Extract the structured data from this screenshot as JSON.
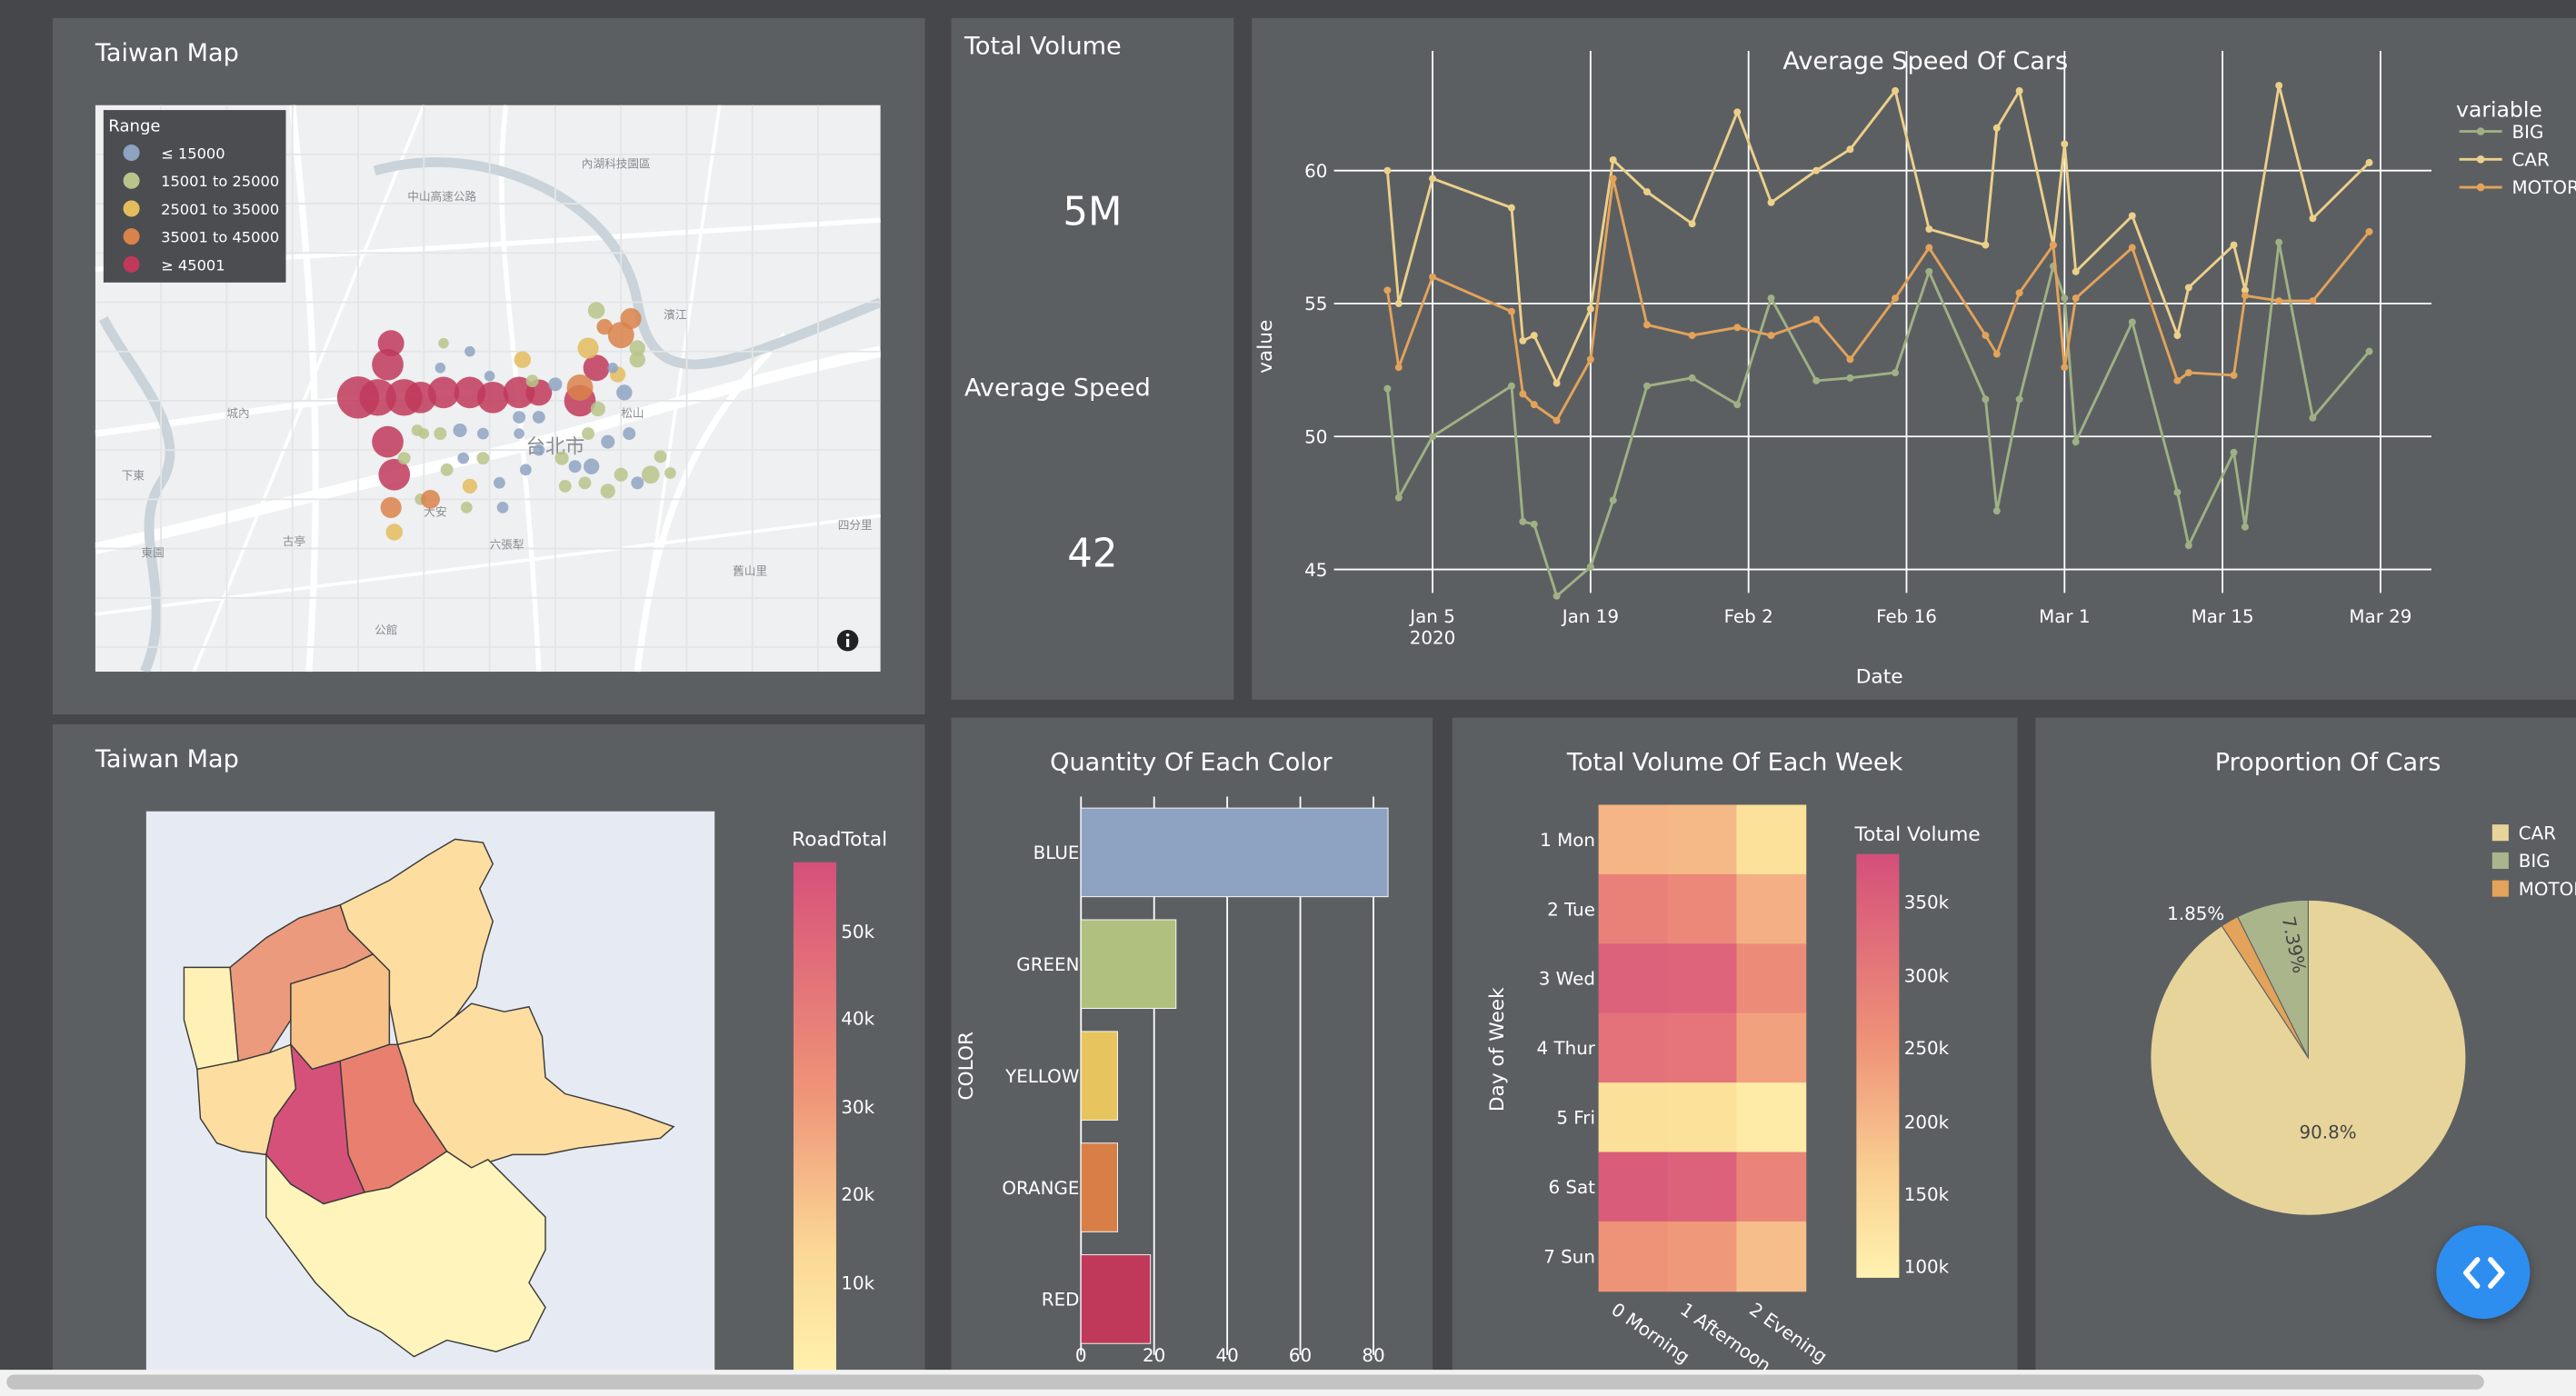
{
  "panels": {
    "point_map": {
      "title": "Taiwan Map"
    },
    "total_volume": {
      "title": "Total Volume",
      "value": "5M"
    },
    "average_speed": {
      "title": "Average Speed",
      "value": "42"
    },
    "region_map": {
      "title": "Taiwan Map"
    }
  },
  "point_map": {
    "legend_title": "Range",
    "legend_items": [
      {
        "label": "≤ 15000",
        "color": "#8ea3c2"
      },
      {
        "label": "15001 to 25000",
        "color": "#b7c48a"
      },
      {
        "label": "25001 to 35000",
        "color": "#e3bc5e"
      },
      {
        "label": "35001 to 45000",
        "color": "#d9824a"
      },
      {
        "label": "≥ 45001",
        "color": "#c0395a"
      }
    ],
    "place_labels": [
      "內湖科技園區",
      "中山高速公路",
      "城內",
      "下東",
      "東園",
      "古亭",
      "大安",
      "六張犁",
      "台北市",
      "松山",
      "四分里",
      "舊山里",
      "公館",
      "濱江"
    ]
  },
  "region_map": {
    "colorbar_title": "RoadTotal",
    "colorbar_ticks": [
      "50k",
      "40k",
      "30k",
      "20k",
      "10k"
    ]
  },
  "icons": {
    "info": "info-icon",
    "code": "code-brackets-icon"
  },
  "chart_data": [
    {
      "type": "line",
      "title": "Average Speed Of Cars",
      "xlabel": "Date",
      "ylabel": "value",
      "ylim": [
        43.5,
        64.5
      ],
      "yticks": [
        "45",
        "50",
        "55",
        "60"
      ],
      "xticks": [
        "Jan 5\n2020",
        "Jan 19",
        "Feb 2",
        "Feb 16",
        "Mar 1",
        "Mar 15",
        "Mar 29"
      ],
      "legend_title": "variable",
      "legend_position": "top-right",
      "grid": true,
      "x": [
        "2020-01-01",
        "2020-01-02",
        "2020-01-05",
        "2020-01-12",
        "2020-01-13",
        "2020-01-14",
        "2020-01-16",
        "2020-01-19",
        "2020-01-21",
        "2020-01-24",
        "2020-01-28",
        "2020-02-01",
        "2020-02-04",
        "2020-02-08",
        "2020-02-11",
        "2020-02-15",
        "2020-02-18",
        "2020-02-23",
        "2020-02-24",
        "2020-02-26",
        "2020-02-29",
        "2020-03-01",
        "2020-03-02",
        "2020-03-07",
        "2020-03-11",
        "2020-03-12",
        "2020-03-16",
        "2020-03-17",
        "2020-03-20",
        "2020-03-23",
        "2020-03-28"
      ],
      "series": [
        {
          "name": "BIG",
          "color": "#9fb184",
          "values": [
            51.8,
            47.7,
            50.0,
            51.9,
            46.8,
            46.7,
            44.0,
            45.1,
            47.6,
            51.9,
            52.2,
            51.2,
            55.2,
            52.1,
            52.2,
            52.4,
            56.2,
            51.4,
            47.2,
            51.4,
            56.4,
            55.2,
            49.8,
            54.3,
            47.9,
            45.9,
            49.4,
            46.6,
            57.3,
            50.7,
            53.2
          ],
          "plotted": [
            51.8,
            47.7,
            50.0,
            51.9,
            46.8,
            46.7,
            44.0,
            45.1,
            47.6,
            51.9,
            52.2,
            51.2,
            55.2,
            52.1,
            52.2,
            52.4,
            56.2,
            51.4,
            47.2,
            51.4,
            56.4,
            55.2,
            49.8,
            54.3,
            47.9,
            45.9,
            49.4,
            46.6,
            57.3,
            50.7,
            53.2
          ]
        },
        {
          "name": "CAR",
          "color": "#ecd08a",
          "values": [
            60.0,
            55.0,
            59.7,
            58.6,
            53.6,
            53.8,
            52.0,
            54.8,
            60.4,
            59.2,
            58.0,
            62.2,
            58.8,
            60.0,
            60.8,
            63.0,
            57.8,
            57.2,
            61.6,
            63.0,
            57.2,
            61.0,
            56.2,
            58.3,
            53.8,
            55.6,
            57.2,
            55.5,
            63.2,
            58.2,
            60.3
          ]
        },
        {
          "name": "MOTOR",
          "color": "#e3a35a",
          "values": [
            55.5,
            52.6,
            56.0,
            54.7,
            51.6,
            51.2,
            50.6,
            52.9,
            59.7,
            54.2,
            53.8,
            54.1,
            53.8,
            54.4,
            52.9,
            55.2,
            57.1,
            53.8,
            53.1,
            55.4,
            57.2,
            52.6,
            55.2,
            57.1,
            52.1,
            52.4,
            52.3,
            55.3,
            55.1,
            55.1,
            57.7
          ]
        }
      ]
    },
    {
      "type": "bar",
      "title": "Quantity Of Each Color",
      "orientation": "horizontal",
      "ylabel": "COLOR",
      "categories": [
        "BLUE",
        "GREEN",
        "YELLOW",
        "ORANGE",
        "RED"
      ],
      "values": [
        84,
        26,
        10,
        10,
        19
      ],
      "colors": [
        "#8ea3c2",
        "#b0c07f",
        "#e7c45e",
        "#d77f46",
        "#c0395a"
      ],
      "xlim": [
        0,
        85
      ],
      "xticks": [
        "0",
        "20",
        "40",
        "60",
        "80"
      ]
    },
    {
      "type": "heatmap",
      "title": "Total Volume Of Each Week",
      "ylabel": "Day of Week",
      "x": [
        "0 Morning",
        "1 Afternoon",
        "2 Evening"
      ],
      "y": [
        "1 Mon",
        "2 Tue",
        "3 Wed",
        "4 Thur",
        "5 Fri",
        "6 Sat",
        "7 Sun"
      ],
      "z": [
        [
          215000,
          210000,
          140000
        ],
        [
          275000,
          265000,
          220000
        ],
        [
          325000,
          320000,
          260000
        ],
        [
          295000,
          290000,
          235000
        ],
        [
          145000,
          140000,
          110000
        ],
        [
          335000,
          325000,
          270000
        ],
        [
          250000,
          245000,
          205000
        ]
      ],
      "colorbar_title": "Total Volume",
      "colorbar_ticks": [
        "350k",
        "300k",
        "250k",
        "200k",
        "150k",
        "100k"
      ]
    },
    {
      "type": "pie",
      "title": "Proportion Of Cars",
      "legend_position": "top-right",
      "categories": [
        "CAR",
        "BIG",
        "MOTOR"
      ],
      "values": [
        90.8,
        7.39,
        1.85
      ],
      "labels": [
        "90.8%",
        "7.39%",
        "1.85%"
      ],
      "colors": [
        "#e7d49a",
        "#aab58b",
        "#e3a35a"
      ]
    }
  ]
}
